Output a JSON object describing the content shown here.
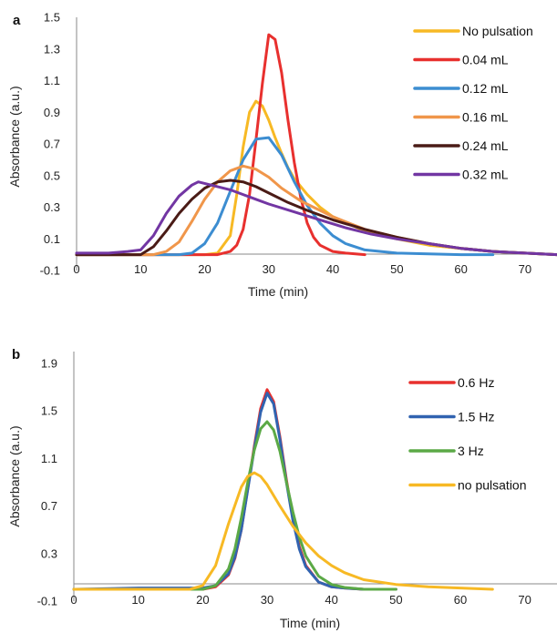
{
  "chart_data": [
    {
      "panel_label": "a",
      "type": "line",
      "xlabel": "Time (min)",
      "ylabel": "Absorbance (a.u.)",
      "xlim": [
        0,
        75
      ],
      "ylim": [
        -0.1,
        1.5
      ],
      "xticks": [
        "0",
        "10",
        "20",
        "30",
        "40",
        "50",
        "60",
        "70"
      ],
      "yticks": [
        "-0.1",
        "0.1",
        "0.3",
        "0.5",
        "0.7",
        "0.9",
        "1.1",
        "1.3",
        "1.5"
      ],
      "grid": false,
      "legend_position": "top-right",
      "series": [
        {
          "name": "No pulsation",
          "color": "#F7B924",
          "x": [
            0,
            20,
            22,
            24,
            25,
            26,
            27,
            28,
            29,
            30,
            31,
            32,
            33,
            34,
            36,
            38,
            40,
            45,
            50,
            55,
            60,
            65,
            70,
            75
          ],
          "y": [
            0,
            0,
            0.01,
            0.12,
            0.38,
            0.68,
            0.9,
            0.97,
            0.94,
            0.85,
            0.74,
            0.64,
            0.55,
            0.48,
            0.38,
            0.3,
            0.24,
            0.15,
            0.1,
            0.06,
            0.04,
            0.02,
            0.01,
            0
          ]
        },
        {
          "name": "0.04 mL",
          "color": "#E8302E",
          "x": [
            0,
            22,
            24,
            25,
            26,
            27,
            28,
            29,
            30,
            31,
            32,
            33,
            34,
            35,
            36,
            37,
            38,
            40,
            42,
            45
          ],
          "y": [
            0,
            0,
            0.02,
            0.06,
            0.16,
            0.38,
            0.72,
            1.08,
            1.39,
            1.36,
            1.15,
            0.85,
            0.58,
            0.36,
            0.2,
            0.11,
            0.06,
            0.02,
            0.01,
            0
          ]
        },
        {
          "name": "0.12 mL",
          "color": "#3C8DD1",
          "x": [
            0,
            16,
            18,
            20,
            22,
            24,
            26,
            28,
            30,
            32,
            34,
            36,
            38,
            40,
            42,
            45,
            50,
            55,
            60,
            65
          ],
          "y": [
            0,
            0,
            0.01,
            0.07,
            0.2,
            0.4,
            0.6,
            0.73,
            0.74,
            0.63,
            0.46,
            0.31,
            0.2,
            0.12,
            0.07,
            0.03,
            0.01,
            0.005,
            0,
            0
          ]
        },
        {
          "name": "0.16 mL",
          "color": "#F0964A",
          "x": [
            0,
            12,
            14,
            16,
            18,
            20,
            22,
            24,
            26,
            28,
            30,
            32,
            35,
            38,
            40,
            45,
            50,
            55,
            60,
            65,
            70,
            75
          ],
          "y": [
            0,
            0,
            0.02,
            0.08,
            0.21,
            0.35,
            0.46,
            0.53,
            0.56,
            0.54,
            0.49,
            0.42,
            0.34,
            0.28,
            0.24,
            0.16,
            0.11,
            0.07,
            0.04,
            0.02,
            0.01,
            0
          ]
        },
        {
          "name": "0.24 mL",
          "color": "#4A1B16",
          "x": [
            0,
            10,
            12,
            14,
            16,
            18,
            20,
            22,
            24,
            26,
            28,
            30,
            33,
            36,
            40,
            45,
            50,
            55,
            60,
            65,
            70,
            75
          ],
          "y": [
            0,
            0,
            0.05,
            0.15,
            0.26,
            0.35,
            0.42,
            0.46,
            0.47,
            0.46,
            0.43,
            0.39,
            0.33,
            0.28,
            0.22,
            0.16,
            0.11,
            0.07,
            0.04,
            0.02,
            0.01,
            0
          ]
        },
        {
          "name": "0.32 mL",
          "color": "#7236A3",
          "x": [
            0,
            5,
            8,
            10,
            12,
            14,
            16,
            18,
            19,
            20,
            22,
            24,
            26,
            28,
            30,
            34,
            38,
            42,
            46,
            50,
            55,
            60,
            65,
            70,
            75
          ],
          "y": [
            0.01,
            0.01,
            0.02,
            0.03,
            0.12,
            0.26,
            0.37,
            0.44,
            0.46,
            0.45,
            0.43,
            0.41,
            0.38,
            0.35,
            0.32,
            0.27,
            0.22,
            0.17,
            0.13,
            0.1,
            0.07,
            0.04,
            0.02,
            0.01,
            0
          ]
        }
      ]
    },
    {
      "panel_label": "b",
      "type": "line",
      "xlabel": "Time (min)",
      "ylabel": "Absorbance (a.u.)",
      "xlim": [
        0,
        75
      ],
      "ylim": [
        -0.1,
        2.0
      ],
      "xticks": [
        "0",
        "10",
        "20",
        "30",
        "40",
        "50",
        "60",
        "70"
      ],
      "yticks": [
        "-0.1",
        "0.3",
        "0.7",
        "1.1",
        "1.5",
        "1.9"
      ],
      "grid": false,
      "legend_position": "top-right",
      "series": [
        {
          "name": "0.6 Hz",
          "color": "#E8302E",
          "x": [
            0,
            20,
            22,
            24,
            25,
            26,
            27,
            28,
            29,
            30,
            31,
            32,
            33,
            34,
            35,
            36,
            38,
            40,
            42,
            45,
            50
          ],
          "y": [
            0,
            0,
            0.02,
            0.12,
            0.26,
            0.5,
            0.85,
            1.2,
            1.52,
            1.68,
            1.58,
            1.28,
            0.92,
            0.6,
            0.36,
            0.2,
            0.06,
            0.02,
            0.01,
            0,
            0
          ]
        },
        {
          "name": "1.5 Hz",
          "color": "#3163B0",
          "x": [
            0,
            10,
            15,
            20,
            22,
            24,
            25,
            26,
            27,
            28,
            29,
            30,
            31,
            32,
            33,
            34,
            35,
            36,
            38,
            40,
            42,
            45,
            50
          ],
          "y": [
            0,
            0.01,
            0.01,
            0.01,
            0.03,
            0.13,
            0.27,
            0.5,
            0.84,
            1.18,
            1.49,
            1.65,
            1.56,
            1.26,
            0.9,
            0.58,
            0.34,
            0.19,
            0.06,
            0.02,
            0.01,
            0,
            0
          ]
        },
        {
          "name": "3 Hz",
          "color": "#5BA946",
          "x": [
            0,
            20,
            22,
            24,
            25,
            26,
            27,
            28,
            29,
            30,
            31,
            32,
            33,
            34,
            35,
            36,
            38,
            40,
            42,
            45,
            50
          ],
          "y": [
            0,
            0,
            0.03,
            0.17,
            0.34,
            0.6,
            0.9,
            1.17,
            1.35,
            1.41,
            1.34,
            1.16,
            0.9,
            0.65,
            0.44,
            0.28,
            0.11,
            0.04,
            0.015,
            0,
            0
          ]
        },
        {
          "name": "no pulsation",
          "color": "#F7B924",
          "x": [
            0,
            18,
            20,
            22,
            24,
            26,
            27,
            28,
            29,
            30,
            32,
            34,
            36,
            38,
            40,
            42,
            45,
            50,
            55,
            60,
            65
          ],
          "y": [
            0,
            0,
            0.03,
            0.2,
            0.55,
            0.86,
            0.95,
            0.98,
            0.95,
            0.88,
            0.7,
            0.53,
            0.39,
            0.28,
            0.2,
            0.14,
            0.08,
            0.04,
            0.02,
            0.01,
            0
          ]
        }
      ]
    }
  ]
}
